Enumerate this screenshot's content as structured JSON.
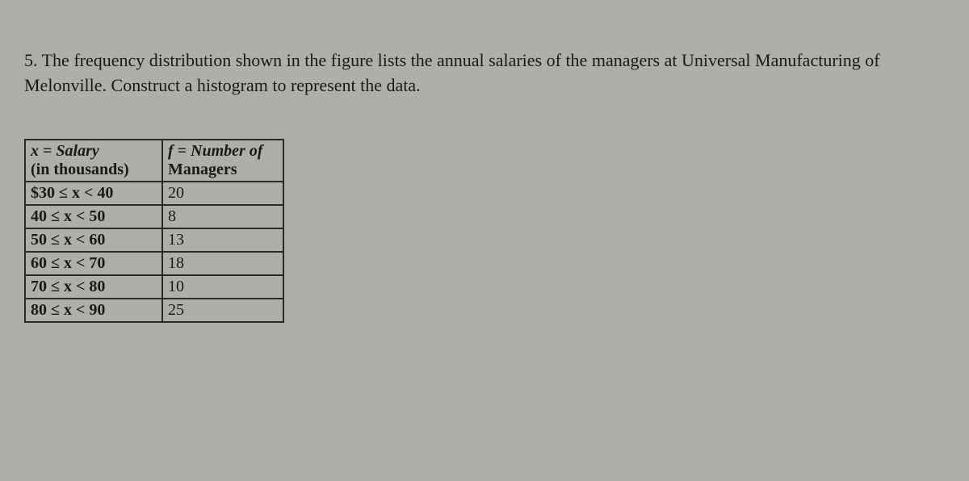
{
  "question": {
    "number": "5.",
    "text": "The frequency distribution shown in the figure lists the annual salaries of the managers at Universal Manufacturing of Melonville. Construct a histogram to represent the data."
  },
  "table": {
    "type": "table",
    "background_color": "#b0aea8",
    "border_color": "#2a2a2a",
    "text_color": "#1a1a1a",
    "font_family": "Times New Roman",
    "header_fontsize": 20,
    "cell_fontsize": 20,
    "columns": [
      {
        "label_line1": "x = Salary",
        "label_line2": "(in thousands)",
        "width": 170
      },
      {
        "label_line1": "f = Number of",
        "label_line2": "Managers",
        "width": 150
      }
    ],
    "rows": [
      {
        "range": "$30 ≤ x < 40",
        "freq": "20"
      },
      {
        "range": "40 ≤ x < 50",
        "freq": "8"
      },
      {
        "range": "50 ≤ x < 60",
        "freq": "13"
      },
      {
        "range": "60 ≤ x < 70",
        "freq": "18"
      },
      {
        "range": "70 ≤ x < 80",
        "freq": "10"
      },
      {
        "range": "80 ≤ x < 90",
        "freq": "25"
      }
    ]
  }
}
